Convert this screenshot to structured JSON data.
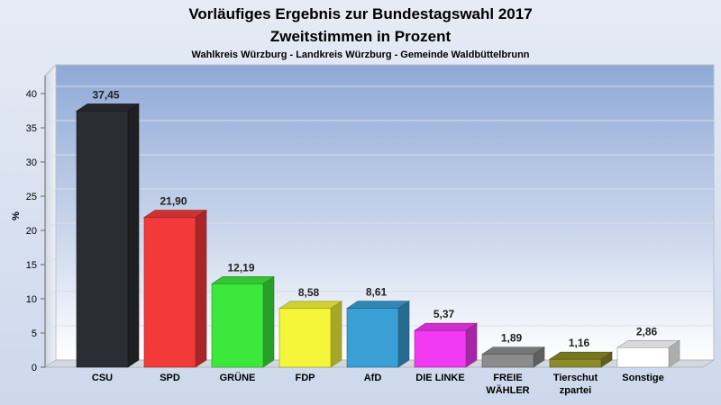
{
  "chart_data": {
    "type": "bar",
    "title": "Vorläufiges Ergebnis zur Bundestagswahl 2017",
    "subtitle": "Zweitstimmen in Prozent",
    "caption": "Wahlkreis Würzburg - Landkreis Würzburg - Gemeinde Waldbüttelbrunn",
    "ylabel": "%",
    "ylim": [
      0,
      40
    ],
    "yticks": [
      0,
      5,
      10,
      15,
      20,
      25,
      30,
      35,
      40
    ],
    "grid": true,
    "categories": [
      "CSU",
      "SPD",
      "GRÜNE",
      "FDP",
      "AfD",
      "DIE LINKE",
      "FREIE WÄHLER",
      "Tierschutzpartei",
      "Sonstige"
    ],
    "category_lines": [
      [
        "CSU"
      ],
      [
        "SPD"
      ],
      [
        "GRÜNE"
      ],
      [
        "FDP"
      ],
      [
        "AfD"
      ],
      [
        "DIE LINKE"
      ],
      [
        "FREIE",
        "WÄHLER"
      ],
      [
        "Tierschut",
        "zpartei"
      ],
      [
        "Sonstige"
      ]
    ],
    "values": [
      37.45,
      21.9,
      12.19,
      8.58,
      8.61,
      5.37,
      1.89,
      1.16,
      2.86
    ],
    "value_labels": [
      "37,45",
      "21,90",
      "12,19",
      "8,58",
      "8,61",
      "5,37",
      "1,89",
      "1,16",
      "2,86"
    ],
    "colors": [
      "#2a2d33",
      "#f23a3a",
      "#3de83d",
      "#f5f53a",
      "#3a9fd4",
      "#f23af2",
      "#8c8c8c",
      "#8c8c28",
      "#ffffff"
    ]
  }
}
